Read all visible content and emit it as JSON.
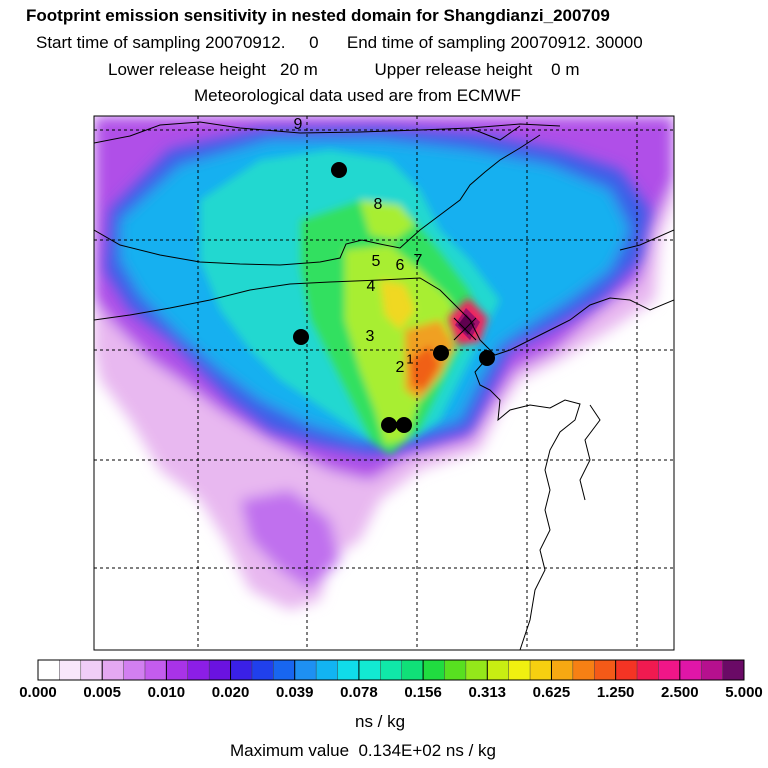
{
  "title": "Footprint emission sensitivity in nested domain for Shangdianzi_200709",
  "line1": "Start time of sampling 20070912.     0      End time of sampling 20070912. 30000",
  "line2": "Lower release height   20 m            Upper release height    0 m",
  "line3": "Meteorological data used are from ECMWF",
  "chart_data": {
    "type": "heatmap",
    "title": "Footprint emission sensitivity in nested domain for Shangdianzi_200709",
    "colorbar": {
      "tick_labels": [
        "0.000",
        "0.005",
        "0.010",
        "0.020",
        "0.039",
        "0.078",
        "0.156",
        "0.313",
        "0.625",
        "1.250",
        "2.500",
        "5.000"
      ],
      "unit": "ns / kg"
    },
    "maximum": "Maximum value  0.134E+02 ns / kg",
    "trajectory_labels": [
      "9",
      "8",
      "5",
      "6",
      "7",
      "4",
      "3",
      "2",
      "1"
    ]
  }
}
